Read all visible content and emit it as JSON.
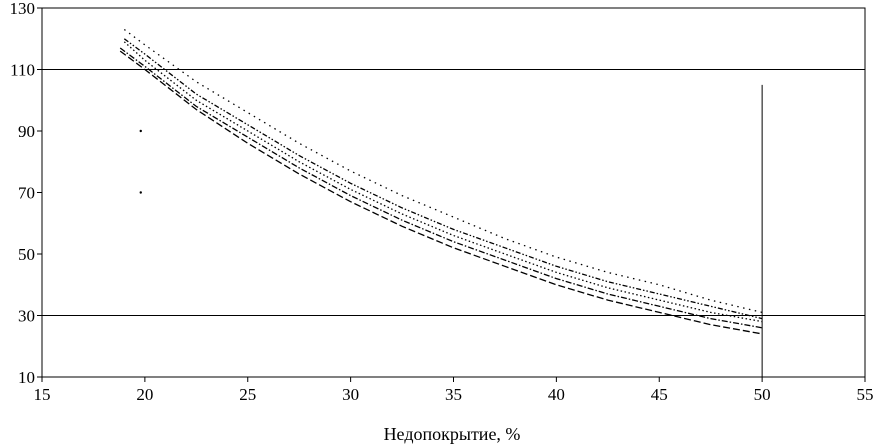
{
  "chart_data": {
    "type": "line",
    "title": "",
    "xlabel": "Недопокрытие, %",
    "ylabel": "",
    "xlim": [
      15,
      55
    ],
    "ylim": [
      10,
      130
    ],
    "x_ticks": [
      15,
      20,
      25,
      30,
      35,
      40,
      45,
      50,
      55
    ],
    "y_ticks": [
      10,
      30,
      50,
      70,
      90,
      110,
      130
    ],
    "grid": false,
    "legend": "none",
    "reference_lines": {
      "horizontal": [
        110,
        30
      ],
      "vertical": [
        {
          "x": 50,
          "y_top": 105
        }
      ]
    },
    "stray_points": [
      [
        19.8,
        90
      ],
      [
        19.8,
        70
      ]
    ],
    "series": [
      {
        "style": "dashed",
        "x": [
          18.8,
          20,
          22.5,
          25,
          27.5,
          30,
          32.5,
          35,
          37.5,
          40,
          42.5,
          45,
          47.5,
          50
        ],
        "y": [
          116,
          110,
          97,
          86,
          76,
          67,
          59,
          52,
          46,
          40,
          35,
          31,
          27,
          24
        ]
      },
      {
        "style": "dash-dot",
        "x": [
          18.8,
          20,
          22.5,
          25,
          27.5,
          30,
          32.5,
          35,
          37.5,
          40,
          42.5,
          45,
          47.5,
          50
        ],
        "y": [
          117,
          111,
          98,
          88,
          78,
          69,
          61,
          54,
          48,
          42,
          37,
          33,
          29,
          26
        ]
      },
      {
        "style": "dotted",
        "x": [
          19,
          20,
          22.5,
          25,
          27.5,
          30,
          32.5,
          35,
          37.5,
          40,
          42.5,
          45,
          47.5,
          50
        ],
        "y": [
          119,
          113,
          100,
          90,
          80,
          71,
          63,
          56,
          50,
          44,
          39,
          35,
          31,
          28
        ]
      },
      {
        "style": "dash-dot-dot",
        "x": [
          19,
          20,
          22.5,
          25,
          27.5,
          30,
          32.5,
          35,
          37.5,
          40,
          42.5,
          45,
          47.5,
          50
        ],
        "y": [
          120,
          115,
          102,
          92,
          82,
          73,
          65,
          58,
          52,
          46,
          41,
          37,
          33,
          29
        ]
      },
      {
        "style": "sparse-dotted",
        "x": [
          19,
          20,
          22.5,
          25,
          27.5,
          30,
          32.5,
          35,
          37.5,
          40,
          42.5,
          45,
          47.5,
          50
        ],
        "y": [
          123,
          118,
          106,
          96,
          86,
          77,
          69,
          62,
          55,
          49,
          44,
          40,
          35,
          31
        ]
      }
    ]
  }
}
